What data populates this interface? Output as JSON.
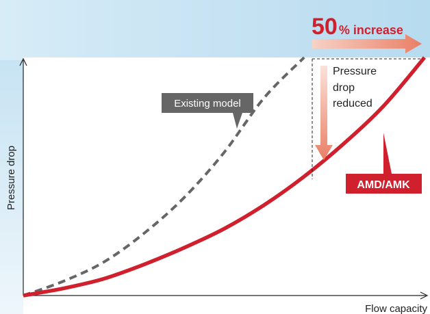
{
  "chart_data": {
    "type": "line",
    "title": "",
    "xlabel": "Flow capacity",
    "ylabel": "Pressure drop",
    "grid": false,
    "series": [
      {
        "name": "Existing model",
        "style": "dashed",
        "color": "#666666",
        "x": [
          0,
          0.1,
          0.2,
          0.3,
          0.4,
          0.5,
          0.6,
          0.7
        ],
        "y": [
          0,
          0.06,
          0.14,
          0.26,
          0.41,
          0.6,
          0.83,
          1.0
        ]
      },
      {
        "name": "AMD/AMK",
        "style": "solid",
        "color": "#d0202e",
        "x": [
          0,
          0.1,
          0.2,
          0.3,
          0.4,
          0.5,
          0.6,
          0.7,
          0.8,
          0.9,
          1.0
        ],
        "y": [
          0,
          0.03,
          0.07,
          0.13,
          0.2,
          0.28,
          0.38,
          0.5,
          0.64,
          0.8,
          1.0
        ]
      }
    ],
    "annotations": {
      "increase_number": "50",
      "increase_text": "% increase",
      "pressure_label_lines": [
        "Pressure",
        "drop",
        "reduced"
      ],
      "existing_model_label": "Existing model",
      "amd_label": "AMD/AMK"
    }
  },
  "colors": {
    "accent_red": "#d0202e",
    "dashed_gray": "#666666",
    "arrow_salmon": "#ee8f76",
    "label_bg": "#666666"
  }
}
